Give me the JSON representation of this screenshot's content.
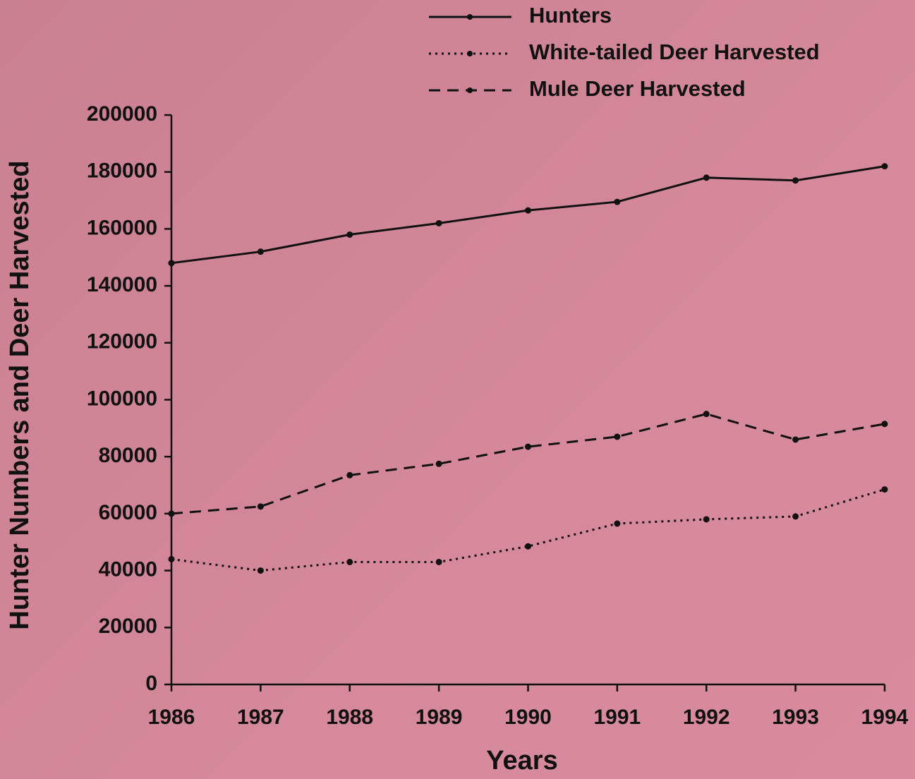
{
  "chart_data": {
    "type": "line",
    "x_label": "Years",
    "y_label": "Hunter Numbers and Deer Harvested",
    "categories": [
      "1986",
      "1987",
      "1988",
      "1989",
      "1990",
      "1991",
      "1992",
      "1993",
      "1994"
    ],
    "series": [
      {
        "name": "Hunters",
        "color": "#111111",
        "dash": "solid",
        "values": [
          148000,
          152000,
          158000,
          162000,
          166500,
          169500,
          178000,
          177000,
          182000
        ]
      },
      {
        "name": "White-tailed Deer Harvested",
        "color": "#111111",
        "dash": "dotted",
        "values": [
          44000,
          40000,
          43000,
          43000,
          48500,
          56500,
          58000,
          59000,
          68500
        ]
      },
      {
        "name": "Mule Deer Harvested",
        "color": "#111111",
        "dash": "dashed",
        "values": [
          60000,
          62500,
          73500,
          77500,
          83500,
          87000,
          95000,
          86000,
          91500
        ]
      }
    ],
    "ylim": [
      0,
      200000
    ],
    "yticks": [
      0,
      20000,
      40000,
      60000,
      80000,
      100000,
      120000,
      140000,
      160000,
      180000,
      200000
    ],
    "grid": false,
    "legend": "top"
  }
}
